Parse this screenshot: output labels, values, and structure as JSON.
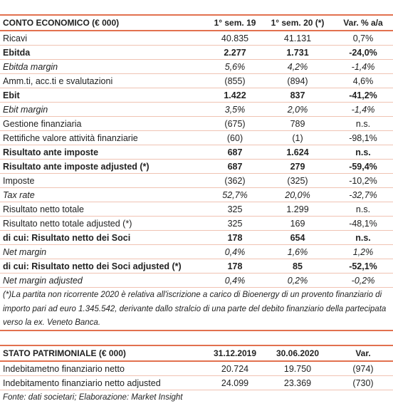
{
  "income_table": {
    "header": [
      "CONTO ECONOMICO (€ 000)",
      "1° sem. 19",
      "1° sem. 20 (*)",
      "Var. % a/a"
    ],
    "rows": [
      {
        "cells": [
          "Ricavi",
          "40.835",
          "41.131",
          "0,7%"
        ]
      },
      {
        "cells": [
          "Ebitda",
          "2.277",
          "1.731",
          "-24,0%"
        ],
        "style": "bold"
      },
      {
        "cells": [
          "Ebitda margin",
          "5,6%",
          "4,2%",
          "-1,4%"
        ],
        "style": "italic"
      },
      {
        "cells": [
          "Amm.ti, acc.ti e svalutazioni",
          "(855)",
          "(894)",
          "4,6%"
        ]
      },
      {
        "cells": [
          "Ebit",
          "1.422",
          "837",
          "-41,2%"
        ],
        "style": "bold"
      },
      {
        "cells": [
          "Ebit margin",
          "3,5%",
          "2,0%",
          "-1,4%"
        ],
        "style": "italic"
      },
      {
        "cells": [
          "Gestione finanziaria",
          "(675)",
          "789",
          "n.s."
        ]
      },
      {
        "cells": [
          "Rettifiche valore attività finanziarie",
          "(60)",
          "(1)",
          "-98,1%"
        ]
      },
      {
        "cells": [
          "Risultato ante imposte",
          "687",
          "1.624",
          "n.s."
        ],
        "style": "bold"
      },
      {
        "cells": [
          "Risultato ante imposte adjusted (*)",
          "687",
          "279",
          "-59,4%"
        ],
        "style": "bold"
      },
      {
        "cells": [
          "Imposte",
          "(362)",
          "(325)",
          "-10,2%"
        ]
      },
      {
        "cells": [
          "Tax rate",
          "52,7%",
          "20,0%",
          "-32,7%"
        ],
        "style": "italic"
      },
      {
        "cells": [
          "Risultato netto totale",
          "325",
          "1.299",
          "n.s."
        ]
      },
      {
        "cells": [
          "Risultato netto totale adjusted (*)",
          "325",
          "169",
          "-48,1%"
        ]
      },
      {
        "cells": [
          "di cui: Risultato netto dei Soci",
          "178",
          "654",
          "n.s."
        ],
        "style": "bold"
      },
      {
        "cells": [
          "Net margin",
          "0,4%",
          "1,6%",
          "1,2%"
        ],
        "style": "italic"
      },
      {
        "cells": [
          "di cui: Risultato netto dei Soci adjusted (*)",
          "178",
          "85",
          "-52,1%"
        ],
        "style": "bold"
      },
      {
        "cells": [
          "Net margin adjusted",
          "0,4%",
          "0,2%",
          "-0,2%"
        ],
        "style": "italic"
      }
    ],
    "note": "(*)La partita non ricorrente 2020 è relativa all'iscrizione a carico di Bioenergy di un provento finanziario di importo pari ad euro 1.345.542, derivante dallo stralcio di una parte del debito finanziario della partecipata verso la ex. Veneto Banca."
  },
  "balance_table": {
    "header": [
      "STATO PATRIMONIALE (€ 000)",
      "31.12.2019",
      "30.06.2020",
      "Var."
    ],
    "rows": [
      {
        "cells": [
          "Indebitametno finanziario netto",
          "20.724",
          "19.750",
          "(974)"
        ]
      },
      {
        "cells": [
          "Indebitamento finanziario netto adjusted",
          "24.099",
          "23.369",
          "(730)"
        ]
      }
    ]
  },
  "footer": "Fonte: dati societari; Elaborazione: Market Insight"
}
